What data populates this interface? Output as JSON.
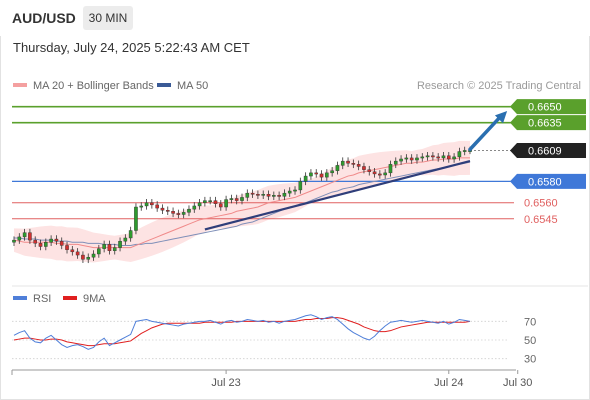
{
  "header": {
    "symbol": "AUD/USD",
    "timeframe": "30 MIN",
    "datetime": "Thursday, July 24, 2025 5:22:43 AM CET"
  },
  "legend": {
    "ma20_label": "MA 20 + Bollinger Bands",
    "ma20_color": "#f4a0a0",
    "ma50_label": "MA 50",
    "ma50_color": "#3a5a96"
  },
  "credit": "Research © 2025 Trading Central",
  "colors": {
    "resistance": "#5aa02c",
    "support_blue": "#3f78d8",
    "support_red": "#e06060",
    "current_price": "#222222",
    "trend_line": "#2f3e7a",
    "arrow": "#2a6fb0",
    "candle_up": "#2e9a2e",
    "candle_down": "#d03030",
    "rsi_line": "#4f7fd9",
    "rsi_ma": "#e02020",
    "bollinger_fill": "#fde3e3"
  },
  "chart_data": {
    "type": "candlestick",
    "ylim": [
      0.6497,
      0.666
    ],
    "levels": [
      {
        "name": "resistance-2",
        "value": 0.665,
        "label": "0.6650",
        "style": "resistance-box"
      },
      {
        "name": "resistance-1",
        "value": 0.6635,
        "label": "0.6635",
        "style": "resistance-box"
      },
      {
        "name": "current-price",
        "value": 0.6609,
        "label": "0.6609",
        "style": "current-box"
      },
      {
        "name": "support-1",
        "value": 0.658,
        "label": "0.6580",
        "style": "support-box"
      },
      {
        "name": "support-2",
        "value": 0.656,
        "label": "0.6560",
        "style": "support-text"
      },
      {
        "name": "support-3",
        "value": 0.6545,
        "label": "0.6545",
        "style": "support-text"
      }
    ],
    "x_ticks": [
      "Jul 23",
      "Jul 24",
      "Jul 30"
    ],
    "x_tick_index": [
      40,
      82,
      95
    ],
    "closes": [
      0.6525,
      0.6528,
      0.6532,
      0.6525,
      0.6522,
      0.6519,
      0.6523,
      0.6526,
      0.6524,
      0.652,
      0.6516,
      0.6514,
      0.6511,
      0.6507,
      0.6509,
      0.6512,
      0.6517,
      0.6521,
      0.6515,
      0.6518,
      0.6524,
      0.6527,
      0.6534,
      0.6556,
      0.6557,
      0.656,
      0.6558,
      0.6555,
      0.6553,
      0.6552,
      0.655,
      0.6549,
      0.6551,
      0.6554,
      0.6557,
      0.656,
      0.6562,
      0.6562,
      0.6559,
      0.6556,
      0.6563,
      0.6564,
      0.6562,
      0.6565,
      0.6569,
      0.6568,
      0.6567,
      0.6568,
      0.6566,
      0.6567,
      0.6566,
      0.6569,
      0.6571,
      0.6572,
      0.658,
      0.6585,
      0.6588,
      0.6587,
      0.6584,
      0.6588,
      0.659,
      0.6595,
      0.6599,
      0.6597,
      0.6596,
      0.6594,
      0.6591,
      0.6589,
      0.6587,
      0.6586,
      0.6588,
      0.6596,
      0.6599,
      0.6601,
      0.6602,
      0.66,
      0.6602,
      0.6603,
      0.6604,
      0.6603,
      0.6602,
      0.6604,
      0.6601,
      0.6603,
      0.6608,
      0.6609,
      0.6609
    ],
    "ma20": [
      0.6525,
      0.6524,
      0.6523,
      0.6523,
      0.6523,
      0.6523,
      0.6523,
      0.6523,
      0.6522,
      0.6522,
      0.6521,
      0.6521,
      0.6521,
      0.652,
      0.6519,
      0.6518,
      0.6518,
      0.6518,
      0.6518,
      0.6518,
      0.6518,
      0.6518,
      0.6518,
      0.652,
      0.6522,
      0.6524,
      0.6526,
      0.6528,
      0.653,
      0.6532,
      0.6534,
      0.6536,
      0.6538,
      0.654,
      0.6542,
      0.6544,
      0.6545,
      0.6546,
      0.6547,
      0.6548,
      0.6549,
      0.655,
      0.6552,
      0.6553,
      0.6554,
      0.6555,
      0.6556,
      0.6558,
      0.656,
      0.6561,
      0.6562,
      0.6563,
      0.6564,
      0.6565,
      0.6567,
      0.6569,
      0.6571,
      0.6573,
      0.6575,
      0.6577,
      0.6579,
      0.6581,
      0.6583,
      0.6585,
      0.6586,
      0.6588,
      0.6589,
      0.659,
      0.6591,
      0.6592,
      0.6593,
      0.6594,
      0.6595,
      0.6596,
      0.6597,
      0.6597,
      0.6598,
      0.6598,
      0.6599,
      0.66,
      0.66,
      0.6601,
      0.6601,
      0.6601,
      0.6602,
      0.6602,
      0.6602
    ],
    "ma50": [
      0.6527,
      0.6527,
      0.6526,
      0.6526,
      0.6526,
      0.6525,
      0.6525,
      0.6525,
      0.6524,
      0.6524,
      0.6524,
      0.6523,
      0.6523,
      0.6523,
      0.6522,
      0.6522,
      0.6522,
      0.6521,
      0.6521,
      0.6521,
      0.652,
      0.652,
      0.652,
      0.6521,
      0.6521,
      0.6522,
      0.6522,
      0.6523,
      0.6524,
      0.6525,
      0.6526,
      0.6527,
      0.6528,
      0.6529,
      0.653,
      0.6531,
      0.6532,
      0.6533,
      0.6534,
      0.6535,
      0.6536,
      0.6537,
      0.6538,
      0.654,
      0.6541,
      0.6542,
      0.6544,
      0.6546,
      0.6548,
      0.655,
      0.6552,
      0.6554,
      0.6556,
      0.6557,
      0.6559,
      0.656,
      0.6562,
      0.6564,
      0.6566,
      0.6568,
      0.657,
      0.6571,
      0.6573,
      0.6574,
      0.6575,
      0.6577,
      0.6578,
      0.6579,
      0.658,
      0.6581,
      0.6582,
      0.6583,
      0.6584,
      0.6585,
      0.6586,
      0.6587,
      0.6588,
      0.6589,
      0.659,
      0.6591,
      0.6592,
      0.6593,
      0.6594,
      0.6595,
      0.6596,
      0.6597,
      0.6598
    ],
    "trend_line": {
      "from": [
        36,
        0.6535
      ],
      "to": [
        86,
        0.6599
      ]
    },
    "arrow": {
      "from": [
        86,
        0.661
      ],
      "to": [
        93,
        0.6646
      ]
    },
    "rsi": {
      "labels": {
        "rsi": "RSI",
        "ma": "9MA"
      },
      "ylim": [
        20,
        80
      ],
      "levels": [
        70,
        50,
        30
      ],
      "values": [
        55,
        58,
        60,
        52,
        48,
        47,
        52,
        55,
        50,
        45,
        42,
        44,
        45,
        43,
        40,
        42,
        48,
        52,
        44,
        47,
        50,
        53,
        56,
        70,
        71,
        72,
        70,
        69,
        68,
        67,
        66,
        65,
        67,
        68,
        69,
        70,
        70,
        71,
        69,
        67,
        70,
        71,
        69,
        70,
        72,
        71,
        70,
        71,
        69,
        70,
        68,
        70,
        71,
        72,
        74,
        76,
        77,
        75,
        72,
        74,
        75,
        72,
        67,
        62,
        58,
        55,
        52,
        50,
        54,
        60,
        65,
        69,
        70,
        71,
        70,
        69,
        70,
        71,
        70,
        69,
        68,
        70,
        67,
        69,
        72,
        71,
        70
      ],
      "ma_values": [
        50,
        51,
        52,
        52,
        51,
        50,
        50,
        51,
        51,
        50,
        48,
        47,
        46,
        45,
        44,
        44,
        45,
        46,
        46,
        46,
        47,
        48,
        49,
        53,
        57,
        60,
        63,
        65,
        67,
        68,
        68,
        68,
        68,
        68,
        68,
        68,
        69,
        69,
        69,
        69,
        69,
        69,
        70,
        70,
        70,
        70,
        70,
        70,
        70,
        70,
        70,
        70,
        70,
        70,
        71,
        72,
        72,
        73,
        73,
        73,
        74,
        74,
        73,
        71,
        69,
        67,
        64,
        62,
        60,
        59,
        59,
        60,
        62,
        64,
        65,
        66,
        67,
        68,
        69,
        69,
        69,
        69,
        69,
        69,
        69,
        69,
        70
      ]
    }
  }
}
